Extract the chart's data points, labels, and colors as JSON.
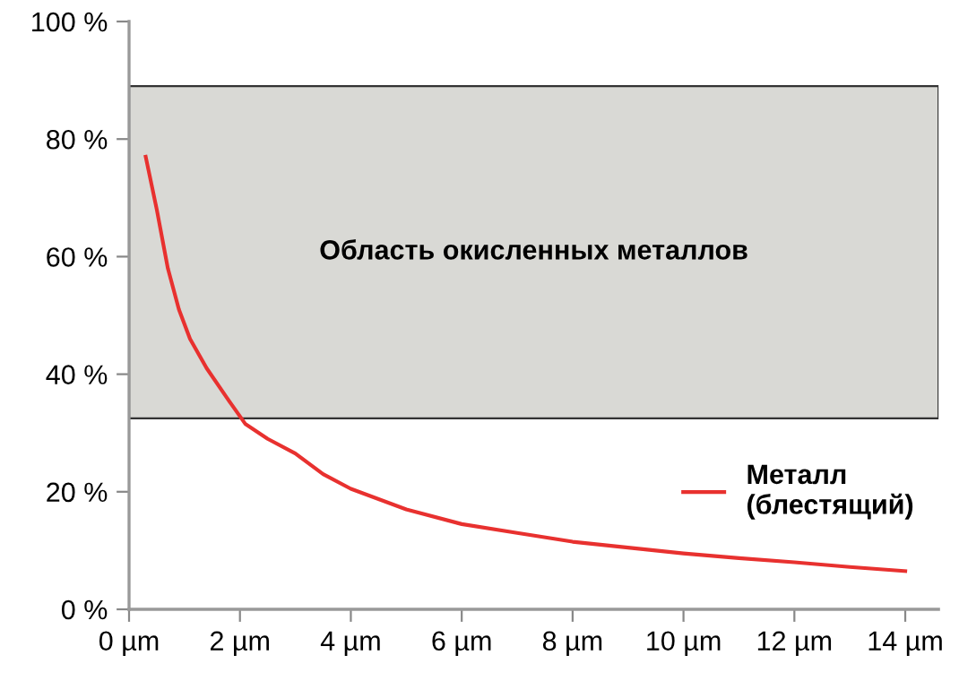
{
  "chart_data": {
    "type": "line",
    "x": [
      0.3,
      0.5,
      0.7,
      0.9,
      1.1,
      1.4,
      1.8,
      2.1,
      2.5,
      3,
      3.5,
      4,
      5,
      6,
      7,
      8,
      9,
      10,
      11,
      12,
      13,
      14
    ],
    "series": [
      {
        "name": "Металл\n(блестящий)",
        "color": "#e8312f",
        "values": [
          77,
          68,
          58,
          51,
          46,
          41,
          35.5,
          31.5,
          29,
          26.5,
          23,
          20.5,
          17,
          14.5,
          13,
          11.5,
          10.5,
          9.5,
          8.7,
          8,
          7.2,
          6.5
        ]
      }
    ],
    "xlim": [
      0,
      14.6
    ],
    "ylim": [
      0,
      100
    ],
    "xticks": [
      {
        "value": 0,
        "label": "0 µm"
      },
      {
        "value": 2,
        "label": "2 µm"
      },
      {
        "value": 4,
        "label": "4 µm"
      },
      {
        "value": 6,
        "label": "6 µm"
      },
      {
        "value": 8,
        "label": "8 µm"
      },
      {
        "value": 10,
        "label": "10 µm"
      },
      {
        "value": 12,
        "label": "12 µm"
      },
      {
        "value": 14,
        "label": "14 µm"
      }
    ],
    "yticks": [
      {
        "value": 0,
        "label": "0 %"
      },
      {
        "value": 20,
        "label": "20 %"
      },
      {
        "value": 40,
        "label": "40 %"
      },
      {
        "value": 60,
        "label": "60 %"
      },
      {
        "value": 80,
        "label": "80 %"
      },
      {
        "value": 100,
        "label": "100 %"
      }
    ],
    "bands": [
      {
        "axis": "y",
        "from": 32.5,
        "to": 89,
        "label": "Область окисленных металлов",
        "color": "#d9d9d5"
      }
    ],
    "grid": false,
    "legend": "right",
    "marker": "none",
    "line_style": "solid"
  }
}
